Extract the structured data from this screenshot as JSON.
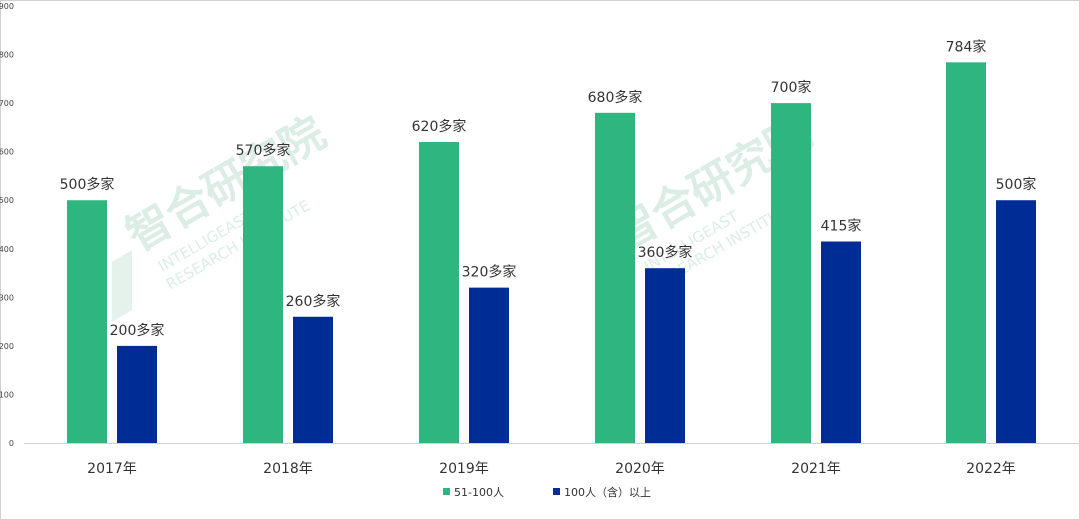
{
  "watermark": {
    "cn": "智合研究院",
    "en_line1": "INTELLIGEAST",
    "en_line2": "RESEARCH INSTITUTE"
  },
  "chart_data": {
    "type": "bar",
    "categories": [
      "2017年",
      "2018年",
      "2019年",
      "2020年",
      "2021年",
      "2022年"
    ],
    "ylim": [
      0,
      900
    ],
    "yticks": [
      0,
      100,
      200,
      300,
      400,
      500,
      600,
      700,
      800,
      900
    ],
    "series": [
      {
        "name": "51-100人",
        "color": "#2fb57f",
        "values": [
          500,
          570,
          620,
          680,
          700,
          784
        ],
        "labels": [
          "500多家",
          "570多家",
          "620多家",
          "680多家",
          "700家",
          "784家"
        ]
      },
      {
        "name": "100人（含）以上",
        "color": "#002c96",
        "values": [
          200,
          260,
          320,
          360,
          415,
          500
        ],
        "labels": [
          "200多家",
          "260多家",
          "320多家",
          "360多家",
          "415家",
          "500家"
        ]
      }
    ],
    "legend_position": "bottom",
    "grid": false
  }
}
